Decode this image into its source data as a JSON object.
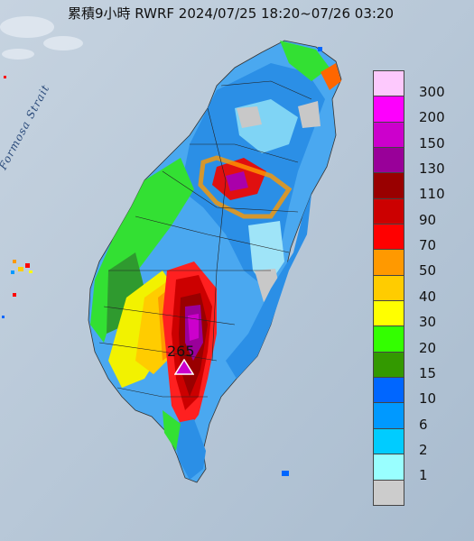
{
  "title": "累積9小時 RWRF 2024/07/25 18:20~07/26 03:20",
  "strait_label": "Formosa Strait",
  "max_value": "265",
  "legend": {
    "labels": [
      "300",
      "200",
      "150",
      "130",
      "110",
      "90",
      "70",
      "50",
      "40",
      "30",
      "20",
      "15",
      "10",
      "6",
      "2",
      "1"
    ],
    "colors": [
      "#fdc9fd",
      "#fd00fd",
      "#cc00cc",
      "#990099",
      "#990000",
      "#cc0000",
      "#ff0000",
      "#ff9900",
      "#ffcc00",
      "#ffff00",
      "#33ff00",
      "#339900",
      "#0066ff",
      "#0099ff",
      "#00ccff",
      "#99ffff",
      "#cccccc"
    ]
  }
}
